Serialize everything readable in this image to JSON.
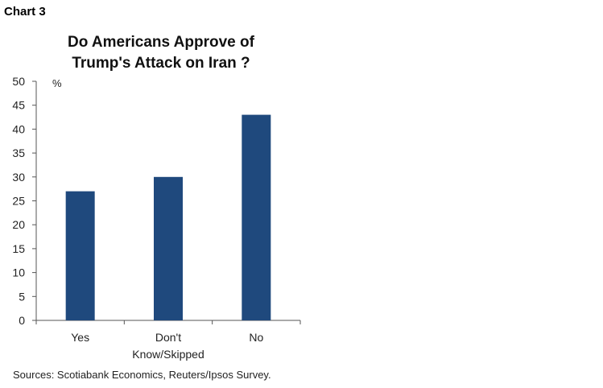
{
  "label": "Chart 3",
  "chart_data": {
    "type": "bar",
    "title_lines": [
      "Do Americans Approve of",
      "Trump's Attack on Iran ?"
    ],
    "unit_label": "%",
    "categories": [
      [
        "Yes"
      ],
      [
        "Don't",
        "Know/Skipped"
      ],
      [
        "No"
      ]
    ],
    "values": [
      27,
      30,
      43
    ],
    "yticks": [
      0,
      5,
      10,
      15,
      20,
      25,
      30,
      35,
      40,
      45,
      50
    ],
    "ylim": [
      0,
      50
    ],
    "bar_color": "#1f497d",
    "grid": false
  },
  "source": "Sources: Scotiabank Economics, Reuters/Ipsos Survey."
}
